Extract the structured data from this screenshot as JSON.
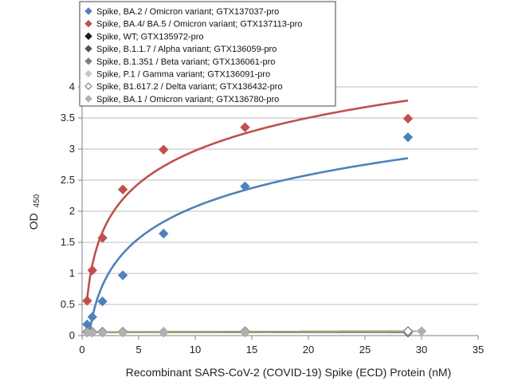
{
  "chart_data": {
    "type": "scatter",
    "xlabel": "Recombinant SARS-CoV-2 (COVID-19) Spike (ECD) Protein  (nM)",
    "ylabel_main": "OD",
    "ylabel_sub": "450",
    "xlim": [
      0,
      35
    ],
    "ylim": [
      0,
      4
    ],
    "xticks": [
      0,
      5,
      10,
      15,
      20,
      25,
      30,
      35
    ],
    "yticks": [
      0,
      0.5,
      1,
      1.5,
      2,
      2.5,
      3,
      3.5,
      4
    ],
    "ytick_labels": [
      "0",
      "0.5",
      "1",
      "1.5",
      "2",
      "2.5",
      "3",
      "3.5",
      "4"
    ],
    "grid": "horizontal",
    "legend_position": "top-left",
    "series": [
      {
        "name": "Spike, BA.2 / Omicron variant; GTX137037-pro",
        "color": "#4f81bd",
        "marker": "diamond",
        "x": [
          0.45,
          0.9,
          1.8,
          3.6,
          7.2,
          14.4,
          28.8
        ],
        "y": [
          0.18,
          0.3,
          0.55,
          0.97,
          1.64,
          2.4,
          3.19
        ],
        "fit": "log",
        "fit_color": "#4f81bd"
      },
      {
        "name": "Spike, BA.4/ BA.5 / Omicron variant; GTX137113-pro",
        "color": "#c0504d",
        "marker": "diamond",
        "x": [
          0.45,
          0.9,
          1.8,
          3.6,
          7.2,
          14.4,
          28.8
        ],
        "y": [
          0.56,
          1.05,
          1.57,
          2.35,
          2.99,
          3.35,
          3.49
        ],
        "fit": "log",
        "fit_color": "#c0504d"
      },
      {
        "name": "Spike, WT; GTX135972-pro",
        "color": "#1a1a1a",
        "marker": "diamond",
        "x": [
          0.45,
          0.9,
          1.8,
          3.6,
          7.2,
          14.4,
          28.8
        ],
        "y": [
          0.05,
          0.05,
          0.05,
          0.05,
          0.05,
          0.05,
          0.05
        ],
        "fit": "linear",
        "fit_color": "#404040"
      },
      {
        "name": "Spike, B.1.1.7 / Alpha variant; GTX136059-pro",
        "color": "#555555",
        "marker": "diamond",
        "x": [
          0.45,
          0.9,
          1.8,
          3.6,
          7.2,
          14.4,
          28.8
        ],
        "y": [
          0.06,
          0.06,
          0.06,
          0.06,
          0.06,
          0.07,
          0.07
        ],
        "fit": "linear",
        "fit_color": "#7f7f7f"
      },
      {
        "name": "Spike, B.1.351 / Beta variant; GTX136061-pro",
        "color": "#7f7f7f",
        "marker": "diamond",
        "x": [
          0.45,
          0.9,
          1.8,
          3.6,
          7.2,
          14.4,
          28.8
        ],
        "y": [
          0.06,
          0.06,
          0.06,
          0.06,
          0.06,
          0.07,
          0.07
        ],
        "fit": "linear",
        "fit_color": "#8b8b6b"
      },
      {
        "name": "Spike, P.1 / Gamma variant; GTX136091-pro",
        "color": "#c8c8c8",
        "marker": "diamond",
        "x": [
          0.45,
          0.9,
          1.8,
          3.6,
          7.2,
          14.4,
          28.8
        ],
        "y": [
          0.05,
          0.05,
          0.05,
          0.05,
          0.05,
          0.05,
          0.06
        ],
        "fit": "linear",
        "fit_color": "#b8b890"
      },
      {
        "name": "Spike, B1.617.2 / Delta variant; GTX136432-pro",
        "color": "#ffffff",
        "stroke": "#666666",
        "marker": "diamond",
        "x": [
          0.45,
          0.9,
          1.8,
          3.6,
          7.2,
          14.4,
          28.8
        ],
        "y": [
          0.06,
          0.06,
          0.06,
          0.06,
          0.06,
          0.06,
          0.07
        ],
        "fit": "linear",
        "fit_color": "#a6a66a"
      },
      {
        "name": "Spike, BA.1 / Omicron variant; GTX136780-pro",
        "color": "#b0b0b0",
        "marker": "diamond",
        "x": [
          0.45,
          0.9,
          1.8,
          3.6,
          7.2,
          14.4,
          30.0
        ],
        "y": [
          0.05,
          0.05,
          0.05,
          0.05,
          0.06,
          0.06,
          0.07
        ],
        "fit": "linear",
        "fit_color": "#9e9e6e"
      }
    ]
  }
}
